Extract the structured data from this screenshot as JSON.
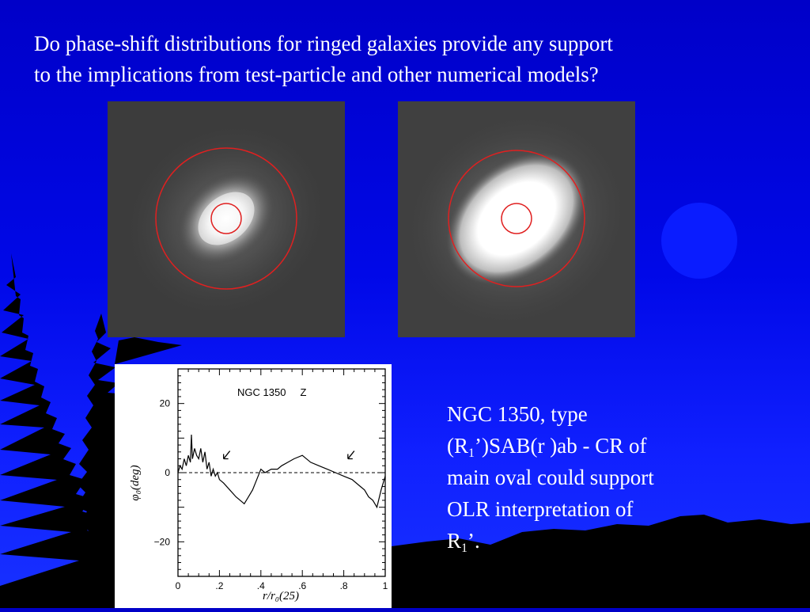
{
  "heading": {
    "line1": "Do phase-shift distributions for ringed galaxies provide any support",
    "line2": "to the implications from test-particle and other numerical models?"
  },
  "colors": {
    "background": "#0000c8",
    "text": "#ffffff",
    "ring": "#e02020",
    "moon": "#0a1cff",
    "silhouette": "#000000"
  },
  "caption": {
    "l1": "NGC 1350, type",
    "l2a": "(R",
    "l2sub": "1",
    "l2b": "’)SAB(r )ab - CR of",
    "l3": "main oval could support",
    "l4": "OLR interpretation of",
    "l5a": "R",
    "l5sub": "1",
    "l5b": "’."
  },
  "chart_data": {
    "type": "line",
    "title": "NGC 1350     Z",
    "xlabel": "r/r₀(25)",
    "ylabel": "φ₀(deg)",
    "xlim": [
      0,
      1
    ],
    "ylim": [
      -30,
      30
    ],
    "xticks": [
      "0",
      ".2",
      ".4",
      ".6",
      ".8",
      "1"
    ],
    "yticks": [
      "20",
      "0",
      "−20"
    ],
    "reference_line_y": 0,
    "series": [
      {
        "x": [
          0.0,
          0.01,
          0.02,
          0.03,
          0.04,
          0.05,
          0.06,
          0.065,
          0.07,
          0.08,
          0.09,
          0.1,
          0.11,
          0.12,
          0.13,
          0.14,
          0.15,
          0.16,
          0.17,
          0.18,
          0.19,
          0.2,
          0.22,
          0.25,
          0.28,
          0.3,
          0.32,
          0.34,
          0.36,
          0.38,
          0.4,
          0.42,
          0.45,
          0.48,
          0.5,
          0.53,
          0.56,
          0.6,
          0.64,
          0.68,
          0.72,
          0.76,
          0.8,
          0.84,
          0.88,
          0.9,
          0.92,
          0.94,
          0.96,
          0.98,
          1.0
        ],
        "y": [
          0,
          2,
          1,
          4,
          2,
          5,
          3,
          11,
          4,
          7,
          5,
          4,
          7,
          3,
          6,
          1,
          3,
          -1,
          1,
          -1,
          0,
          -2,
          -3,
          -5,
          -7,
          -8,
          -9,
          -7,
          -5,
          -2,
          1,
          0,
          1,
          1,
          2,
          3,
          4,
          5,
          3,
          2,
          1,
          0,
          -1,
          -2,
          -4,
          -5,
          -7,
          -8,
          -10,
          -5,
          -1
        ]
      }
    ],
    "annotations": [
      "↙ arrow near r/r₀ ≈ 0.22",
      "↙ arrow near r/r₀ ≈ 0.82"
    ]
  }
}
